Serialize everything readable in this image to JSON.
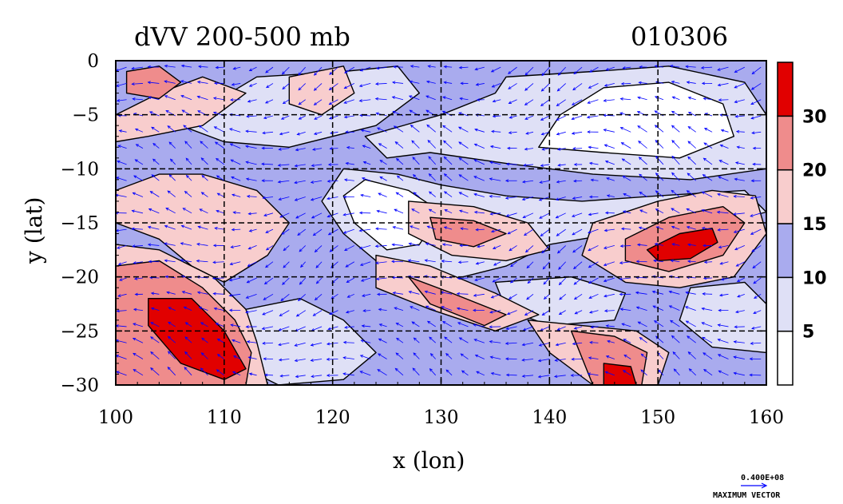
{
  "chart_data": {
    "type": "heatmap",
    "title": "dVV 200-500 mb",
    "date_label": "010306",
    "xlabel": "x (lon)",
    "ylabel": "y (lat)",
    "xlim": [
      100,
      160
    ],
    "ylim": [
      -30,
      0
    ],
    "x_ticks": [
      100,
      110,
      120,
      130,
      140,
      150,
      160
    ],
    "x_tick_labels": [
      "100",
      "110",
      "120",
      "130",
      "140",
      "150",
      "160"
    ],
    "y_ticks": [
      0,
      -5,
      -10,
      -15,
      -20,
      -25,
      -30
    ],
    "y_tick_labels": [
      "0",
      "−5",
      "−10",
      "−15",
      "−20",
      "−25",
      "−30"
    ],
    "grid": true,
    "grid_x": [
      110,
      120,
      130,
      140,
      150
    ],
    "grid_y": [
      -5,
      -10,
      -15,
      -20,
      -25
    ],
    "colorbar": {
      "placement": "right",
      "levels": [
        0,
        5,
        10,
        15,
        20,
        30,
        40
      ],
      "tick_labels": [
        "5",
        "10",
        "15",
        "20",
        "30"
      ],
      "colors": [
        "#ffffff",
        "#dfe0f6",
        "#a9abee",
        "#f8cdcd",
        "#ef8c8c",
        "#e10000"
      ]
    },
    "maximum_vector": {
      "value_label": "0.400E+08",
      "caption": "MAXIMUM VECTOR",
      "color": "#0000ff"
    },
    "regions": [
      {
        "name": "bg",
        "level": 10,
        "points": [
          [
            100,
            0
          ],
          [
            160,
            0
          ],
          [
            160,
            -30
          ],
          [
            100,
            -30
          ]
        ]
      },
      {
        "name": "nw-light",
        "level": 5,
        "points": [
          [
            108,
            -4.5
          ],
          [
            113,
            -1.5
          ],
          [
            121,
            -1
          ],
          [
            126,
            -0.5
          ],
          [
            128,
            -3
          ],
          [
            124,
            -6
          ],
          [
            116,
            -8
          ],
          [
            110,
            -7.5
          ],
          [
            106,
            -6
          ]
        ]
      },
      {
        "name": "ne-light",
        "level": 5,
        "points": [
          [
            136,
            -1.5
          ],
          [
            144,
            -1
          ],
          [
            151,
            -0.5
          ],
          [
            158,
            -2
          ],
          [
            160,
            -5
          ],
          [
            160,
            -10
          ],
          [
            153,
            -11
          ],
          [
            144,
            -10.5
          ],
          [
            136,
            -9.5
          ],
          [
            129,
            -8.5
          ],
          [
            125,
            -9
          ],
          [
            123,
            -7
          ],
          [
            130,
            -5
          ],
          [
            135,
            -3
          ]
        ]
      },
      {
        "name": "ne-white",
        "level": 0,
        "points": [
          [
            145,
            -2.5
          ],
          [
            151,
            -2
          ],
          [
            156,
            -4
          ],
          [
            157,
            -7
          ],
          [
            152,
            -9
          ],
          [
            145,
            -8.5
          ],
          [
            139,
            -8
          ],
          [
            141,
            -5
          ]
        ]
      },
      {
        "name": "central-light",
        "level": 5,
        "points": [
          [
            121,
            -10
          ],
          [
            126,
            -10.5
          ],
          [
            130,
            -11.5
          ],
          [
            136,
            -12.5
          ],
          [
            143,
            -13
          ],
          [
            150,
            -12.5
          ],
          [
            158,
            -12
          ],
          [
            160,
            -14
          ],
          [
            154,
            -15.5
          ],
          [
            146,
            -16
          ],
          [
            140,
            -17
          ],
          [
            136,
            -19
          ],
          [
            132,
            -20
          ],
          [
            128,
            -20.5
          ],
          [
            124,
            -18.5
          ],
          [
            121,
            -16
          ],
          [
            119,
            -13
          ]
        ]
      },
      {
        "name": "central-white",
        "level": 0,
        "points": [
          [
            123,
            -11
          ],
          [
            127,
            -12
          ],
          [
            130,
            -14
          ],
          [
            128,
            -17
          ],
          [
            125,
            -17.5
          ],
          [
            122,
            -15
          ],
          [
            121,
            -12.5
          ]
        ]
      },
      {
        "name": "sw-light",
        "level": 5,
        "points": [
          [
            112,
            -23
          ],
          [
            117,
            -22
          ],
          [
            121,
            -24
          ],
          [
            124,
            -27
          ],
          [
            121,
            -29.5
          ],
          [
            115,
            -30
          ],
          [
            111,
            -28
          ]
        ]
      },
      {
        "name": "se-light",
        "level": 5,
        "points": [
          [
            135,
            -20.5
          ],
          [
            142,
            -20
          ],
          [
            147,
            -21.5
          ],
          [
            146,
            -24
          ],
          [
            140,
            -24.5
          ],
          [
            136,
            -23
          ]
        ]
      },
      {
        "name": "e-light",
        "level": 5,
        "points": [
          [
            153,
            -21
          ],
          [
            158,
            -20.5
          ],
          [
            160,
            -22.5
          ],
          [
            160,
            -27
          ],
          [
            155,
            -26.5
          ],
          [
            152,
            -24
          ]
        ]
      },
      {
        "name": "nw-pink",
        "level": 15,
        "points": [
          [
            100,
            -5
          ],
          [
            104,
            -3
          ],
          [
            108,
            -1.5
          ],
          [
            112,
            -3
          ],
          [
            108,
            -6
          ],
          [
            103,
            -7
          ],
          [
            100,
            -7.5
          ]
        ]
      },
      {
        "name": "nw-red",
        "level": 20,
        "points": [
          [
            101,
            -1
          ],
          [
            104,
            -0.5
          ],
          [
            106,
            -2
          ],
          [
            104,
            -3.5
          ],
          [
            101,
            -3
          ]
        ]
      },
      {
        "name": "n-pink",
        "level": 15,
        "points": [
          [
            116,
            -1.5
          ],
          [
            121,
            -0.5
          ],
          [
            122,
            -3
          ],
          [
            119,
            -5
          ],
          [
            116,
            -4
          ]
        ]
      },
      {
        "name": "w-pink",
        "level": 15,
        "points": [
          [
            100,
            -12
          ],
          [
            104,
            -10.5
          ],
          [
            108,
            -10.5
          ],
          [
            113,
            -12
          ],
          [
            116,
            -15
          ],
          [
            114,
            -18
          ],
          [
            110,
            -20.5
          ],
          [
            107,
            -19
          ],
          [
            104,
            -16.5
          ],
          [
            100,
            -15
          ]
        ]
      },
      {
        "name": "sw-pink",
        "level": 15,
        "points": [
          [
            100,
            -17
          ],
          [
            104,
            -17.5
          ],
          [
            109,
            -20
          ],
          [
            112,
            -23
          ],
          [
            113,
            -26
          ],
          [
            114,
            -30
          ],
          [
            100,
            -30
          ]
        ]
      },
      {
        "name": "sw-red",
        "level": 20,
        "points": [
          [
            100,
            -19
          ],
          [
            104,
            -18.5
          ],
          [
            108,
            -21
          ],
          [
            111,
            -24
          ],
          [
            112.5,
            -27
          ],
          [
            112,
            -30
          ],
          [
            100,
            -30
          ]
        ]
      },
      {
        "name": "sw-dark",
        "level": 30,
        "points": [
          [
            103,
            -22
          ],
          [
            107,
            -22
          ],
          [
            110,
            -25
          ],
          [
            112,
            -28.5
          ],
          [
            110,
            -29.5
          ],
          [
            106,
            -28
          ],
          [
            103,
            -24.5
          ]
        ]
      },
      {
        "name": "mid-pink",
        "level": 15,
        "points": [
          [
            127,
            -13
          ],
          [
            133,
            -13.5
          ],
          [
            138,
            -15
          ],
          [
            140,
            -17.5
          ],
          [
            136,
            -18.5
          ],
          [
            131,
            -18
          ],
          [
            127,
            -16
          ]
        ]
      },
      {
        "name": "mid-red",
        "level": 20,
        "points": [
          [
            129,
            -14.5
          ],
          [
            133,
            -14.8
          ],
          [
            136,
            -16
          ],
          [
            133,
            -17.2
          ],
          [
            129.5,
            -16.5
          ]
        ]
      },
      {
        "name": "mid-south-pink",
        "level": 15,
        "points": [
          [
            124,
            -18
          ],
          [
            129,
            -19
          ],
          [
            135,
            -21.5
          ],
          [
            139,
            -23.5
          ],
          [
            135,
            -25
          ],
          [
            129,
            -23
          ],
          [
            124,
            -21
          ]
        ]
      },
      {
        "name": "mid-south-red",
        "level": 20,
        "points": [
          [
            127,
            -20
          ],
          [
            131,
            -21.5
          ],
          [
            136,
            -23.5
          ],
          [
            134,
            -24.5
          ],
          [
            129,
            -22.5
          ]
        ]
      },
      {
        "name": "e-pink",
        "level": 15,
        "points": [
          [
            144,
            -15
          ],
          [
            150,
            -13
          ],
          [
            155,
            -12
          ],
          [
            159,
            -12.5
          ],
          [
            160,
            -16
          ],
          [
            157,
            -20
          ],
          [
            152,
            -21
          ],
          [
            147,
            -20.5
          ],
          [
            143,
            -18
          ]
        ]
      },
      {
        "name": "e-red",
        "level": 20,
        "points": [
          [
            147,
            -16.5
          ],
          [
            151,
            -14.5
          ],
          [
            156,
            -13.5
          ],
          [
            158,
            -15
          ],
          [
            156,
            -18
          ],
          [
            151,
            -19.5
          ],
          [
            147,
            -18.5
          ]
        ]
      },
      {
        "name": "e-dark",
        "level": 30,
        "points": [
          [
            149,
            -17.5
          ],
          [
            152,
            -16
          ],
          [
            155,
            -15.5
          ],
          [
            155.5,
            -16.8
          ],
          [
            153,
            -18.3
          ],
          [
            150,
            -18.5
          ]
        ]
      },
      {
        "name": "se-pink",
        "level": 15,
        "points": [
          [
            138,
            -24
          ],
          [
            143,
            -24.5
          ],
          [
            148,
            -25
          ],
          [
            151,
            -27
          ],
          [
            150,
            -30
          ],
          [
            144,
            -30
          ],
          [
            140,
            -27
          ]
        ]
      },
      {
        "name": "se-red",
        "level": 20,
        "points": [
          [
            142,
            -25
          ],
          [
            146,
            -25.5
          ],
          [
            149,
            -27
          ],
          [
            148.5,
            -30
          ],
          [
            144,
            -30
          ]
        ]
      },
      {
        "name": "se-dark",
        "level": 30,
        "points": [
          [
            145,
            -28
          ],
          [
            147.5,
            -28.3
          ],
          [
            148,
            -30
          ],
          [
            145,
            -30
          ]
        ]
      }
    ]
  }
}
